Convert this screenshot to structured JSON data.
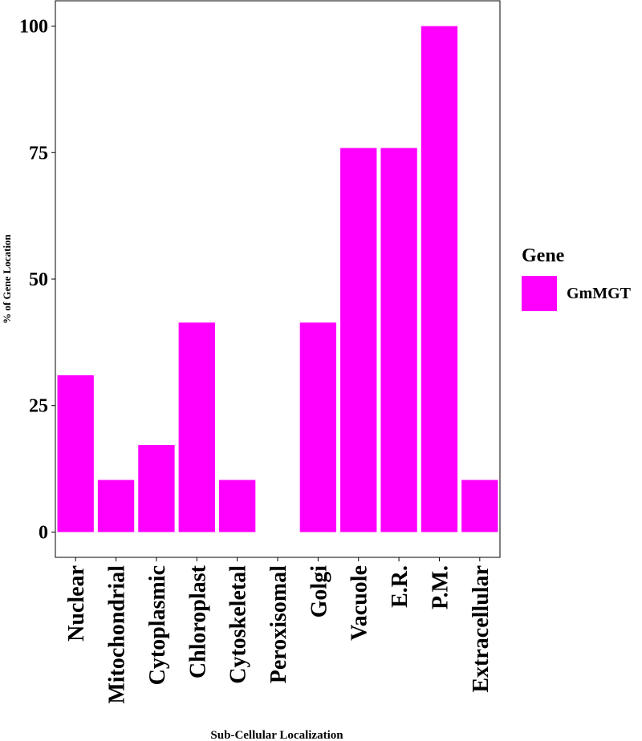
{
  "chart_data": {
    "type": "bar",
    "title": "",
    "xlabel": "Sub-Cellular Localization",
    "ylabel": "% of Gene Location",
    "categories": [
      "Nuclear",
      "Mitochondrial",
      "Cytoplasmic",
      "Chloroplast",
      "Cytoskeletal",
      "Peroxisomal",
      "Golgi",
      "Vacuole",
      "E.R.",
      "P.M.",
      "Extracellular"
    ],
    "series": [
      {
        "name": "GmMGT",
        "values": [
          31,
          10.3,
          17.2,
          41.4,
          10.3,
          0,
          41.4,
          75.9,
          75.9,
          100,
          10.3
        ]
      }
    ],
    "yticks": [
      0,
      25,
      50,
      75,
      100
    ],
    "ylim": [
      -5,
      105
    ],
    "grid": false,
    "legend_title": "Gene",
    "legend_position": "right",
    "bar_color": "#ff00ff"
  }
}
